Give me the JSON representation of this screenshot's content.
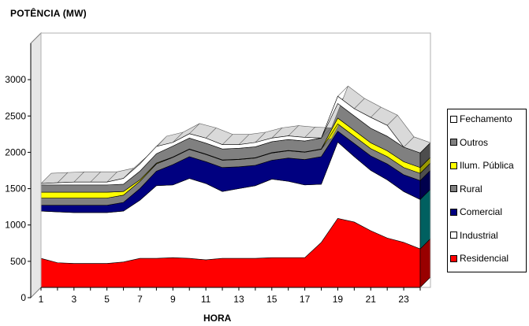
{
  "chart_data": {
    "type": "area",
    "stacked": true,
    "title": "POTÊNCIA (MW)",
    "xlabel": "HORA",
    "ylabel": "",
    "x": [
      1,
      2,
      3,
      4,
      5,
      6,
      7,
      8,
      9,
      10,
      11,
      12,
      13,
      14,
      15,
      16,
      17,
      18,
      19,
      20,
      21,
      22,
      23,
      24
    ],
    "xticks": [
      "1",
      "3",
      "5",
      "7",
      "9",
      "11",
      "13",
      "15",
      "17",
      "19",
      "21",
      "23"
    ],
    "yticks": [
      "0",
      "500",
      "1000",
      "1500",
      "2000",
      "2500",
      "3000"
    ],
    "ylim": [
      0,
      3500
    ],
    "grid": false,
    "legend_position": "right",
    "series": [
      {
        "name": "Residencial",
        "color": "#ff0000",
        "values": [
          400,
          340,
          330,
          330,
          330,
          350,
          400,
          400,
          410,
          400,
          380,
          400,
          400,
          400,
          410,
          410,
          410,
          620,
          950,
          900,
          780,
          680,
          620,
          530
        ]
      },
      {
        "name": "Industrial",
        "color": "#ffffff",
        "values": [
          650,
          700,
          700,
          700,
          700,
          700,
          800,
          1000,
          1000,
          1100,
          1050,
          920,
          960,
          1000,
          1080,
          1050,
          1000,
          800,
          1050,
          900,
          830,
          800,
          700,
          680
        ]
      },
      {
        "name": "Comercial",
        "color": "#000080",
        "values": [
          80,
          90,
          100,
          100,
          100,
          120,
          160,
          200,
          280,
          300,
          300,
          330,
          300,
          280,
          260,
          320,
          350,
          380,
          150,
          180,
          200,
          220,
          230,
          260
        ]
      },
      {
        "name": "Rural",
        "color": "#808080",
        "values": [
          100,
          100,
          100,
          100,
          100,
          100,
          100,
          100,
          100,
          100,
          100,
          100,
          100,
          100,
          100,
          100,
          100,
          100,
          100,
          100,
          100,
          100,
          100,
          100
        ]
      },
      {
        "name": "Ilum. Pública",
        "color": "#ffff00",
        "values": [
          80,
          80,
          80,
          80,
          80,
          50,
          20,
          10,
          5,
          5,
          5,
          5,
          5,
          5,
          5,
          5,
          5,
          5,
          80,
          80,
          80,
          80,
          80,
          80
        ]
      },
      {
        "name": "Outros",
        "color": "#808080",
        "values": [
          100,
          100,
          100,
          100,
          100,
          100,
          120,
          130,
          150,
          150,
          150,
          150,
          150,
          150,
          150,
          150,
          150,
          150,
          200,
          200,
          200,
          200,
          200,
          200
        ]
      },
      {
        "name": "Fechamento",
        "color": "#ffffff",
        "values": [
          20,
          30,
          40,
          40,
          40,
          80,
          100,
          100,
          50,
          60,
          70,
          60,
          50,
          60,
          50,
          50,
          50,
          0,
          100,
          100,
          150,
          150,
          0,
          0
        ]
      }
    ]
  }
}
